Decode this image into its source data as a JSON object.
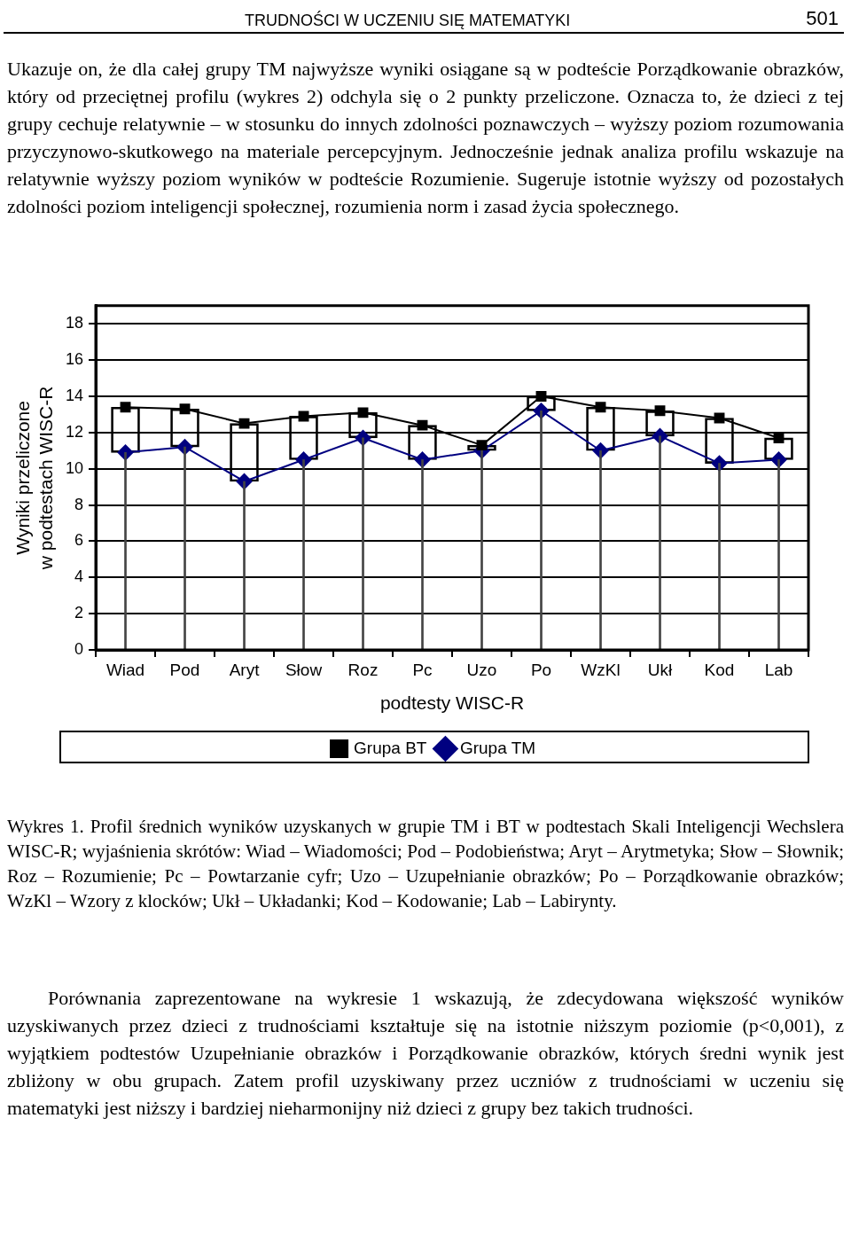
{
  "chart_data": {
    "type": "line",
    "xlabel": "podtesty WISC-R",
    "ylabel": "Wyniki przeliczone\nw podtestach WISC-R",
    "categories": [
      "Wiad",
      "Pod",
      "Aryt",
      "Słow",
      "Roz",
      "Pc",
      "Uzo",
      "Po",
      "WzKl",
      "Ukł",
      "Kod",
      "Lab"
    ],
    "series": [
      {
        "name": "Grupa TM",
        "color": "#000080",
        "marker": "diamond",
        "values": [
          10.9,
          11.2,
          9.3,
          10.5,
          11.7,
          10.5,
          11.0,
          13.2,
          11.0,
          11.8,
          10.3,
          10.5
        ]
      },
      {
        "name": "Grupa BT",
        "color": "#000000",
        "marker": "square",
        "values": [
          13.4,
          13.3,
          12.5,
          12.9,
          13.1,
          12.4,
          11.3,
          14.0,
          13.4,
          13.2,
          12.8,
          11.7
        ]
      },
      {
        "type": "bar",
        "color": "#000000",
        "base": [
          10.9,
          11.2,
          9.3,
          10.5,
          11.7,
          10.5,
          11.0,
          13.2,
          11.0,
          11.8,
          10.3,
          10.5
        ],
        "values": [
          2.5,
          2.1,
          3.2,
          2.4,
          1.4,
          1.9,
          0.3,
          0.8,
          2.4,
          1.4,
          2.5,
          1.2
        ]
      },
      {
        "type": "bar",
        "color": "#444444",
        "values": [
          10.9,
          11.2,
          9.3,
          10.5,
          11.7,
          10.5,
          11.0,
          13.2,
          11.0,
          11.8,
          10.3,
          10.5
        ]
      }
    ],
    "ylim": [
      0,
      19
    ],
    "yticks": [
      0,
      2,
      4,
      6,
      8,
      10,
      12,
      14,
      16,
      18
    ],
    "grid": "y",
    "legend": "bottom",
    "line_style": "solid",
    "annotations": [
      "TRUDNOŚCI W UCZENIU SIĘ MATEMATYKI",
      "501",
      "Ukazuje on, że dla całej grupy TM najwyższe wyniki osiągane są w podteście Porządkowanie obrazków, który od przeciętnej profilu (wykres 2) odchyla się o 2 punkty przeliczone. Oznacza to, że dzieci z tej grupy cechuje relatywnie – w stosunku do innych zdolności poznawczych – wyższy poziom rozumowania przyczynowo-skutkowego na materiale percepcyjnym. Jednocześnie jednak analiza profilu wskazuje na relatywnie wyższy poziom wyników w podteście Rozumienie. Sugeruje istotnie wyższy od pozostałych zdolności poziom inteligencji społecznej, rozumienia norm i zasad życia społecznego.",
      "Wykres 1. Profil średnich wyników uzyskanych w grupie TM i BT w podtestach Skali Inteligencji Wechslera WISC-R; wyjaśnienia skrótów: Wiad – Wiadomości; Pod – Podobieństwa; Aryt – Arytmetyka; Słow – Słownik; Roz – Rozumienie; Pc – Powtarzanie cyfr; Uzo – Uzupełnianie obrazków; Po – Porządkowanie obrazków; WzKl – Wzory z klocków; Ukł – Układanki; Kod – Kodowanie; Lab – Labirynty.",
      "Porównania zaprezentowane na wykresie 1 wskazują, że zdecydowana większość wyników uzyskiwanych przez dzieci z trudnościami kształtuje się na istotnie niższym poziomie (p<0,001), z wyjątkiem podtestów Uzupełnianie obrazków i Porządkowanie obrazków, których średni wynik jest zbliżony w obu grupach. Zatem profil uzyskiwany przez uczniów z trudnościami w uczeniu się matematyki jest niższy i bardziej nieharmonijny niż dzieci z grupy bez takich trudności."
    ]
  }
}
